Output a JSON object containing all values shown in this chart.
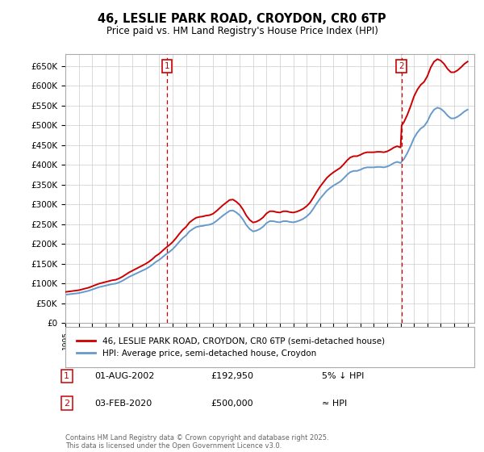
{
  "title": "46, LESLIE PARK ROAD, CROYDON, CR0 6TP",
  "subtitle": "Price paid vs. HM Land Registry's House Price Index (HPI)",
  "ylabel_ticks": [
    "£0",
    "£50K",
    "£100K",
    "£150K",
    "£200K",
    "£250K",
    "£300K",
    "£350K",
    "£400K",
    "£450K",
    "£500K",
    "£550K",
    "£600K",
    "£650K"
  ],
  "ytick_values": [
    0,
    50000,
    100000,
    150000,
    200000,
    250000,
    300000,
    350000,
    400000,
    450000,
    500000,
    550000,
    600000,
    650000
  ],
  "ylim": [
    0,
    680000
  ],
  "xlim_start": 1995.0,
  "xlim_end": 2025.5,
  "sale1_date": 2002.58,
  "sale1_price": 192950,
  "sale2_date": 2020.08,
  "sale2_price": 500000,
  "sale_color": "#cc0000",
  "hpi_color": "#6699cc",
  "legend_label1": "46, LESLIE PARK ROAD, CROYDON, CR0 6TP (semi-detached house)",
  "legend_label2": "HPI: Average price, semi-detached house, Croydon",
  "annotation1_label": "1",
  "annotation1_date": "01-AUG-2002",
  "annotation1_price": "£192,950",
  "annotation1_hpi": "5% ↓ HPI",
  "annotation2_label": "2",
  "annotation2_date": "03-FEB-2020",
  "annotation2_price": "£500,000",
  "annotation2_hpi": "≈ HPI",
  "footer": "Contains HM Land Registry data © Crown copyright and database right 2025.\nThis data is licensed under the Open Government Licence v3.0.",
  "background_color": "#ffffff",
  "grid_color": "#cccccc",
  "hpi_data_years": [
    1995.0,
    1995.25,
    1995.5,
    1995.75,
    1996.0,
    1996.25,
    1996.5,
    1996.75,
    1997.0,
    1997.25,
    1997.5,
    1997.75,
    1998.0,
    1998.25,
    1998.5,
    1998.75,
    1999.0,
    1999.25,
    1999.5,
    1999.75,
    2000.0,
    2000.25,
    2000.5,
    2000.75,
    2001.0,
    2001.25,
    2001.5,
    2001.75,
    2002.0,
    2002.25,
    2002.5,
    2002.75,
    2003.0,
    2003.25,
    2003.5,
    2003.75,
    2004.0,
    2004.25,
    2004.5,
    2004.75,
    2005.0,
    2005.25,
    2005.5,
    2005.75,
    2006.0,
    2006.25,
    2006.5,
    2006.75,
    2007.0,
    2007.25,
    2007.5,
    2007.75,
    2008.0,
    2008.25,
    2008.5,
    2008.75,
    2009.0,
    2009.25,
    2009.5,
    2009.75,
    2010.0,
    2010.25,
    2010.5,
    2010.75,
    2011.0,
    2011.25,
    2011.5,
    2011.75,
    2012.0,
    2012.25,
    2012.5,
    2012.75,
    2013.0,
    2013.25,
    2013.5,
    2013.75,
    2014.0,
    2014.25,
    2014.5,
    2014.75,
    2015.0,
    2015.25,
    2015.5,
    2015.75,
    2016.0,
    2016.25,
    2016.5,
    2016.75,
    2017.0,
    2017.25,
    2017.5,
    2017.75,
    2018.0,
    2018.25,
    2018.5,
    2018.75,
    2019.0,
    2019.25,
    2019.5,
    2019.75,
    2020.0,
    2020.25,
    2020.5,
    2020.75,
    2021.0,
    2021.25,
    2021.5,
    2021.75,
    2022.0,
    2022.25,
    2022.5,
    2022.75,
    2023.0,
    2023.25,
    2023.5,
    2023.75,
    2024.0,
    2024.25,
    2024.5,
    2024.75,
    2025.0
  ],
  "hpi_data_values": [
    72000,
    73000,
    74000,
    75000,
    76000,
    78000,
    80000,
    82000,
    85000,
    88000,
    91000,
    93000,
    95000,
    97000,
    99000,
    100000,
    103000,
    107000,
    112000,
    117000,
    121000,
    125000,
    129000,
    133000,
    137000,
    142000,
    148000,
    155000,
    160000,
    167000,
    174000,
    180000,
    187000,
    196000,
    206000,
    215000,
    222000,
    232000,
    238000,
    243000,
    245000,
    246000,
    248000,
    249000,
    252000,
    258000,
    265000,
    272000,
    278000,
    284000,
    285000,
    280000,
    273000,
    262000,
    248000,
    238000,
    232000,
    234000,
    238000,
    244000,
    253000,
    258000,
    258000,
    256000,
    255000,
    258000,
    258000,
    256000,
    255000,
    257000,
    260000,
    264000,
    270000,
    278000,
    290000,
    303000,
    315000,
    325000,
    335000,
    342000,
    348000,
    353000,
    358000,
    366000,
    375000,
    382000,
    385000,
    385000,
    388000,
    392000,
    394000,
    394000,
    394000,
    395000,
    395000,
    394000,
    396000,
    400000,
    405000,
    408000,
    405000,
    415000,
    430000,
    448000,
    468000,
    482000,
    492000,
    498000,
    510000,
    528000,
    540000,
    545000,
    542000,
    535000,
    525000,
    518000,
    518000,
    522000,
    528000,
    535000,
    540000
  ]
}
